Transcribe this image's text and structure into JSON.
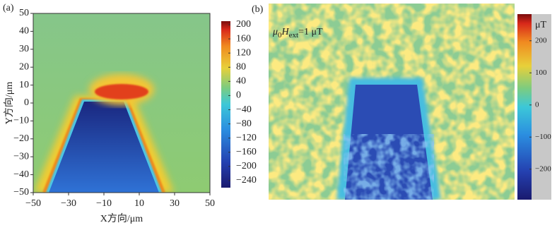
{
  "chart_data": [
    {
      "type": "heatmap",
      "panel_label": "(a)",
      "xlabel": "X方向/μm",
      "ylabel": "Y方向/μm",
      "xlim": [
        -50,
        50
      ],
      "xticks": [
        {
          "value": -50,
          "label": "−50"
        },
        {
          "value": -30,
          "label": "−30"
        },
        {
          "value": -10,
          "label": "−10"
        },
        10,
        30,
        50
      ],
      "ylim": [
        -50,
        50
      ],
      "yticks": [
        {
          "value": -50,
          "label": "−50"
        },
        {
          "value": -40,
          "label": "−40"
        },
        {
          "value": -30,
          "label": "−30"
        },
        {
          "value": -20,
          "label": "−20"
        },
        {
          "value": -10,
          "label": "−10"
        },
        0,
        10,
        20,
        30,
        40,
        50
      ],
      "colorbar": {
        "lim": [
          -260,
          210
        ],
        "ticks": [
          200,
          160,
          120,
          80,
          40,
          0,
          {
            "value": -40,
            "label": "−40"
          },
          {
            "value": -80,
            "label": "−80"
          },
          {
            "value": -120,
            "label": "−120"
          },
          {
            "value": -160,
            "label": "−160"
          },
          {
            "value": -200,
            "label": "−200"
          },
          {
            "value": -240,
            "label": "−240"
          }
        ]
      }
    },
    {
      "type": "heatmap",
      "panel_label": "(b)",
      "annotation": [
        "μ",
        "0",
        "H",
        "ext",
        "=1 μT"
      ],
      "colorbar": {
        "unit": "μT",
        "lim": [
          -295,
          283
        ],
        "ticks": [
          200,
          100,
          0,
          {
            "value": -100,
            "label": "−100"
          },
          {
            "value": -200,
            "label": "−200"
          }
        ]
      }
    }
  ]
}
